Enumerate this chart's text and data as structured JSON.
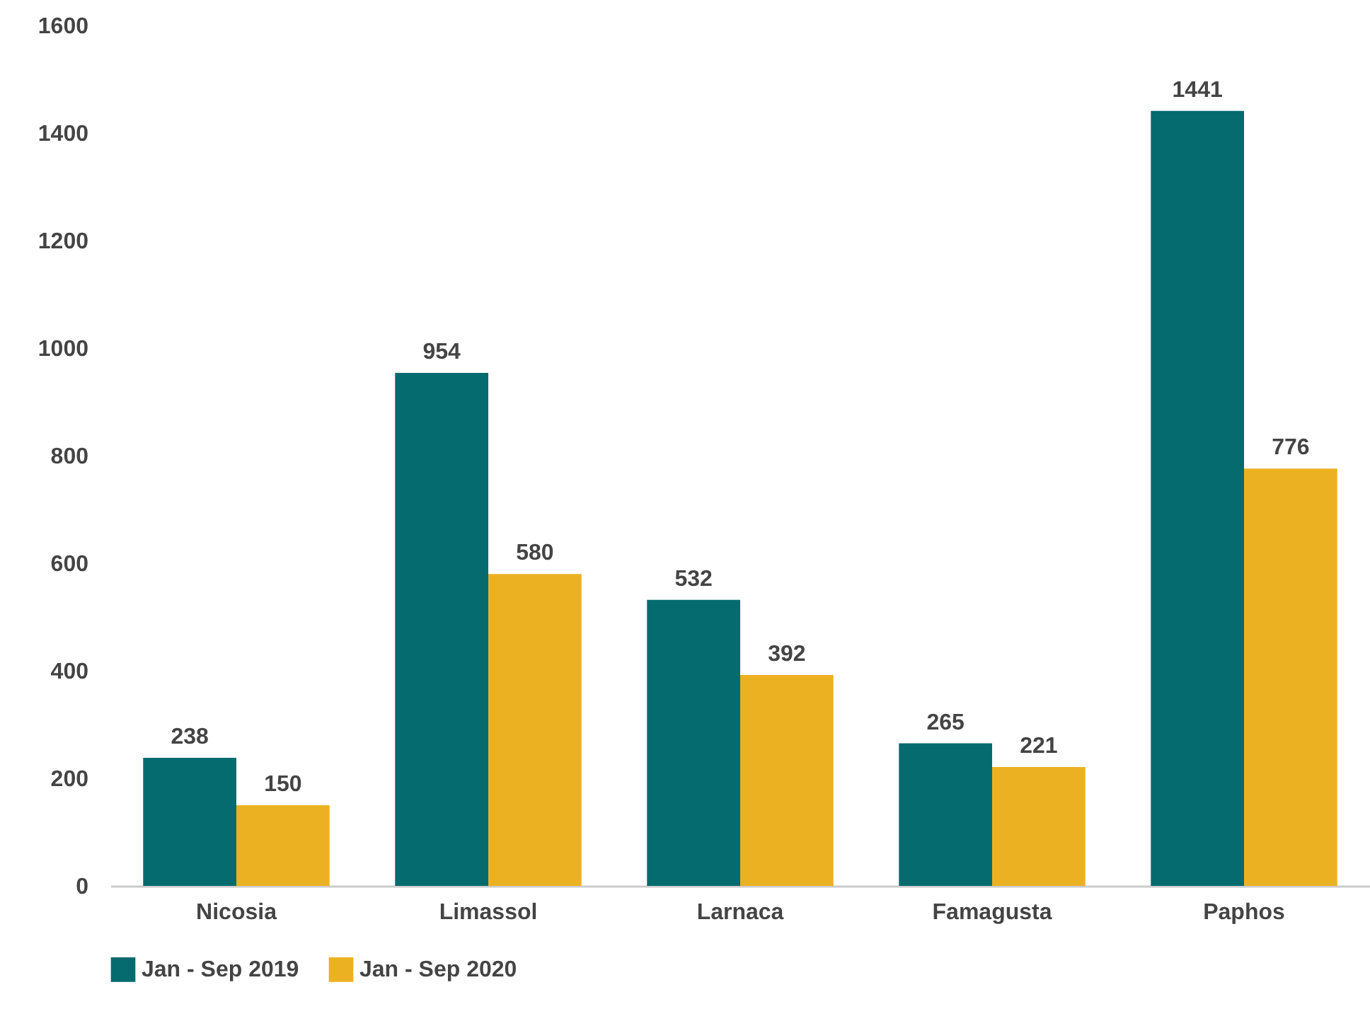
{
  "chart_data": {
    "type": "bar",
    "categories": [
      "Nicosia",
      "Limassol",
      "Larnaca",
      "Famagusta",
      "Paphos"
    ],
    "series": [
      {
        "name": "Jan - Sep 2019",
        "color": "#066b6e",
        "values": [
          238,
          954,
          532,
          265,
          1441
        ]
      },
      {
        "name": "Jan - Sep 2020",
        "color": "#ecb123",
        "values": [
          150,
          580,
          392,
          221,
          776
        ]
      }
    ],
    "ylim": [
      0,
      1600
    ],
    "yticks": [
      0,
      200,
      400,
      600,
      800,
      1000,
      1200,
      1400,
      1600
    ],
    "grid": false,
    "legend": "bottom",
    "data_labels": true
  }
}
